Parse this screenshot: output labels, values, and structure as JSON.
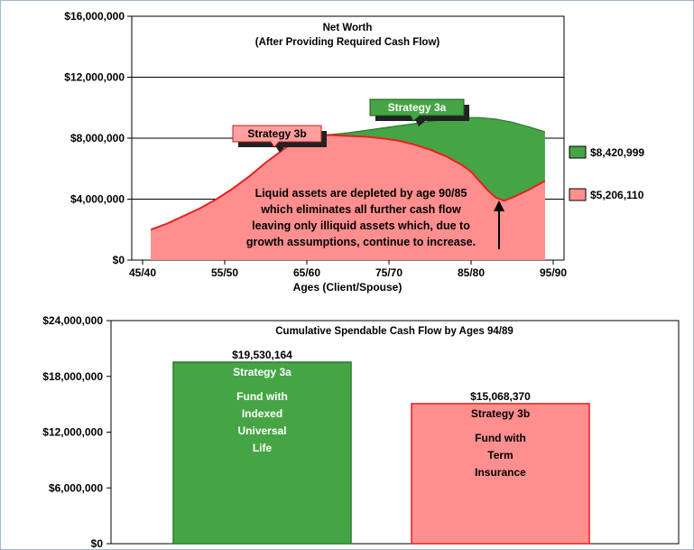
{
  "colors": {
    "green": "#45a545",
    "green_dark": "#2e7a2e",
    "red": "#ff8f8f",
    "red_line": "#e81f1f",
    "callout_red": "#ff9f9f"
  },
  "chart_data": [
    {
      "type": "area",
      "title": "Net Worth",
      "subtitle": "(After Providing Required Cash Flow)",
      "xlabel": "Ages (Client/Spouse)",
      "ylabel": "",
      "x_ticks": [
        "45/40",
        "55/50",
        "65/60",
        "75/70",
        "85/80",
        "95/90"
      ],
      "x_ticks_num": [
        45,
        55,
        65,
        75,
        85,
        95
      ],
      "y_ticks": [
        "$0",
        "$4,000,000",
        "$8,000,000",
        "$12,000,000",
        "$16,000,000"
      ],
      "ylim": [
        0,
        16000000
      ],
      "grid": true,
      "x_range": [
        45,
        95
      ],
      "series": [
        {
          "name": "Strategy 3b",
          "legend_value": "$5,206,110",
          "color": "#ff8f8f",
          "x": [
            46,
            48,
            50,
            52,
            54,
            56,
            58,
            60,
            62,
            64,
            66,
            68,
            70,
            72,
            74,
            76,
            78,
            80,
            82,
            84,
            85,
            86,
            87,
            88,
            89,
            90,
            92,
            94
          ],
          "values": [
            2000000,
            2400000,
            2900000,
            3400000,
            4000000,
            4700000,
            5500000,
            6400000,
            7200000,
            8000000,
            8200000,
            8200000,
            8150000,
            8100000,
            8000000,
            7850000,
            7600000,
            7250000,
            6800000,
            6200000,
            5800000,
            5200000,
            4600000,
            4100000,
            3900000,
            4100000,
            4600000,
            5200000
          ]
        },
        {
          "name": "Strategy 3a",
          "legend_value": "$8,420,999",
          "color": "#45a545",
          "x": [
            46,
            48,
            50,
            52,
            54,
            56,
            58,
            60,
            62,
            64,
            66,
            68,
            70,
            72,
            74,
            76,
            78,
            80,
            82,
            84,
            86,
            88,
            90,
            92,
            94
          ],
          "values": [
            2000000,
            2400000,
            2900000,
            3400000,
            4000000,
            4700000,
            5500000,
            6400000,
            7200000,
            8000000,
            8200000,
            8250000,
            8350000,
            8500000,
            8650000,
            8800000,
            8950000,
            9100000,
            9250000,
            9350000,
            9350000,
            9250000,
            9050000,
            8750000,
            8421000
          ]
        }
      ],
      "callouts": [
        {
          "text": "Strategy 3a",
          "series": "Strategy 3a"
        },
        {
          "text": "Strategy 3b",
          "series": "Strategy 3b"
        }
      ],
      "annotation_lines": [
        "Liquid assets are depleted by age 90/85",
        "which eliminates all further cash flow",
        "leaving only illiquid assets which, due to",
        "growth assumptions, continue to increase."
      ]
    },
    {
      "type": "bar",
      "title": "Cumulative Spendable Cash Flow by Ages 94/89",
      "y_ticks": [
        "$0",
        "$6,000,000",
        "$12,000,000",
        "$18,000,000",
        "$24,000,000"
      ],
      "ylim": [
        0,
        24000000
      ],
      "categories": [
        "Strategy 3a",
        "Strategy 3b"
      ],
      "values": [
        19530164,
        15068370
      ],
      "value_labels": [
        "$19,530,164",
        "$15,068,370"
      ],
      "descriptions": [
        [
          "Fund with",
          "Indexed",
          "Universal",
          "Life"
        ],
        [
          "Fund with",
          "Term",
          "Insurance"
        ]
      ],
      "bar_colors": [
        "#45a545",
        "#ff8f8f"
      ],
      "bar_borders": [
        "#2e7a2e",
        "#e81f1f"
      ]
    }
  ]
}
